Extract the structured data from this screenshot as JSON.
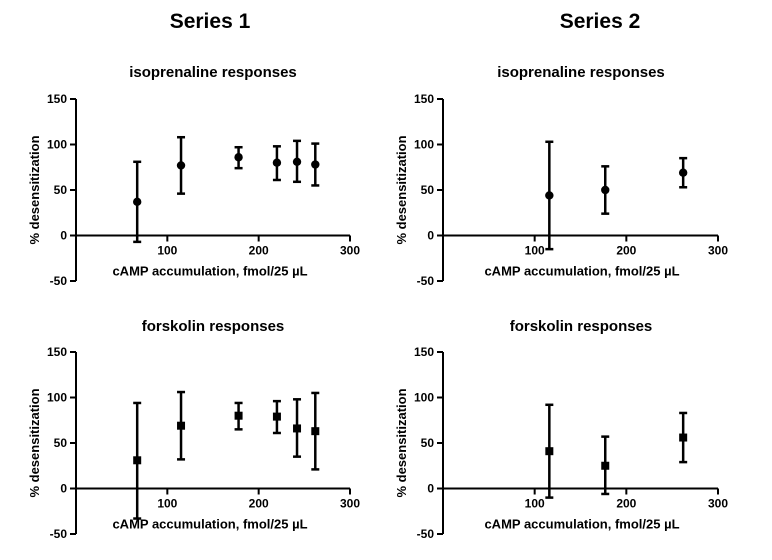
{
  "headers": {
    "series1": "Series 1",
    "series2": "Series 2"
  },
  "chart_data": [
    {
      "type": "scatter",
      "id": "s1-iso",
      "column_title": "Series 1",
      "title": "isoprenaline responses",
      "xlabel": "cAMP accumulation, fmol/25 µL",
      "ylabel": "% desensitization",
      "xlim": [
        0,
        300
      ],
      "ylim": [
        -50,
        150
      ],
      "xticks": [
        100,
        200,
        300
      ],
      "yticks": [
        -50,
        0,
        50,
        100,
        150
      ],
      "marker": "circle",
      "points": [
        {
          "x": 67,
          "y": 37,
          "err_lo": -7,
          "err_hi": 81
        },
        {
          "x": 115,
          "y": 77,
          "err_lo": 46,
          "err_hi": 108
        },
        {
          "x": 178,
          "y": 86,
          "err_lo": 74,
          "err_hi": 97
        },
        {
          "x": 220,
          "y": 80,
          "err_lo": 61,
          "err_hi": 98
        },
        {
          "x": 242,
          "y": 81,
          "err_lo": 59,
          "err_hi": 104
        },
        {
          "x": 262,
          "y": 78,
          "err_lo": 55,
          "err_hi": 101
        }
      ]
    },
    {
      "type": "scatter",
      "id": "s2-iso",
      "column_title": "Series 2",
      "title": "isoprenaline responses",
      "xlabel": "cAMP accumulation, fmol/25 µL",
      "ylabel": "% desensitization",
      "xlim": [
        0,
        300
      ],
      "ylim": [
        -50,
        150
      ],
      "xticks": [
        100,
        200,
        300
      ],
      "yticks": [
        -50,
        0,
        50,
        100,
        150
      ],
      "marker": "circle",
      "points": [
        {
          "x": 116,
          "y": 44,
          "err_lo": -15,
          "err_hi": 103
        },
        {
          "x": 177,
          "y": 50,
          "err_lo": 24,
          "err_hi": 76
        },
        {
          "x": 262,
          "y": 69,
          "err_lo": 53,
          "err_hi": 85
        }
      ]
    },
    {
      "type": "scatter",
      "id": "s1-fsk",
      "column_title": "Series 1",
      "title": "forskolin responses",
      "xlabel": "cAMP accumulation, fmol/25 µL",
      "ylabel": "% desensitization",
      "xlim": [
        0,
        300
      ],
      "ylim": [
        -50,
        150
      ],
      "xticks": [
        100,
        200,
        300
      ],
      "yticks": [
        -50,
        0,
        50,
        100,
        150
      ],
      "marker": "square",
      "points": [
        {
          "x": 67,
          "y": 31,
          "err_lo": -33,
          "err_hi": 94
        },
        {
          "x": 115,
          "y": 69,
          "err_lo": 32,
          "err_hi": 106
        },
        {
          "x": 178,
          "y": 80,
          "err_lo": 65,
          "err_hi": 94
        },
        {
          "x": 220,
          "y": 79,
          "err_lo": 61,
          "err_hi": 96
        },
        {
          "x": 242,
          "y": 66,
          "err_lo": 35,
          "err_hi": 98
        },
        {
          "x": 262,
          "y": 63,
          "err_lo": 21,
          "err_hi": 105
        }
      ]
    },
    {
      "type": "scatter",
      "id": "s2-fsk",
      "column_title": "Series 2",
      "title": "forskolin responses",
      "xlabel": "cAMP accumulation, fmol/25 µL",
      "ylabel": "% desensitization",
      "xlim": [
        0,
        300
      ],
      "ylim": [
        -50,
        150
      ],
      "xticks": [
        100,
        200,
        300
      ],
      "yticks": [
        -50,
        0,
        50,
        100,
        150
      ],
      "marker": "square",
      "points": [
        {
          "x": 116,
          "y": 41,
          "err_lo": -10,
          "err_hi": 92
        },
        {
          "x": 177,
          "y": 25,
          "err_lo": -6,
          "err_hi": 57
        },
        {
          "x": 262,
          "y": 56,
          "err_lo": 29,
          "err_hi": 83
        }
      ]
    }
  ]
}
